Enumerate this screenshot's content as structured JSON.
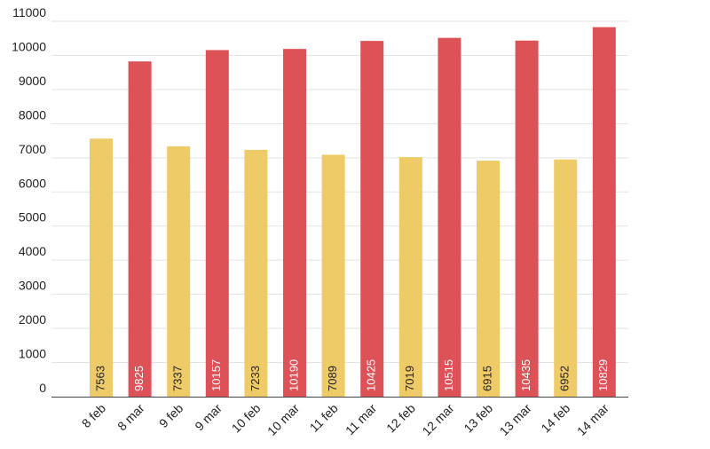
{
  "chart_data": {
    "type": "bar",
    "categories": [
      "8 feb",
      "8 mar",
      "9 feb",
      "9 mar",
      "10 feb",
      "10 mar",
      "11 feb",
      "11 mar",
      "12 feb",
      "12 mar",
      "13 feb",
      "13 mar",
      "14 feb",
      "14 mar"
    ],
    "values": [
      7563,
      9825,
      7337,
      10157,
      7233,
      10190,
      7089,
      10425,
      7019,
      10515,
      6915,
      10435,
      6952,
      10829
    ],
    "bar_colors": [
      "#efcb68",
      "#dd5257",
      "#efcb68",
      "#dd5257",
      "#efcb68",
      "#dd5257",
      "#efcb68",
      "#dd5257",
      "#efcb68",
      "#dd5257",
      "#efcb68",
      "#dd5257",
      "#efcb68",
      "#dd5257"
    ],
    "value_label_colors": [
      "#222222",
      "#ffffff",
      "#222222",
      "#ffffff",
      "#222222",
      "#ffffff",
      "#222222",
      "#ffffff",
      "#222222",
      "#ffffff",
      "#222222",
      "#ffffff",
      "#222222",
      "#ffffff"
    ],
    "y_ticks": [
      "0",
      "1000",
      "2000",
      "3000",
      "4000",
      "5000",
      "6000",
      "7000",
      "8000",
      "9000",
      "10000",
      "11000"
    ],
    "ylim": [
      0,
      11000
    ],
    "title": "",
    "xlabel": "",
    "ylabel": "",
    "grid": true,
    "legend": "none"
  }
}
